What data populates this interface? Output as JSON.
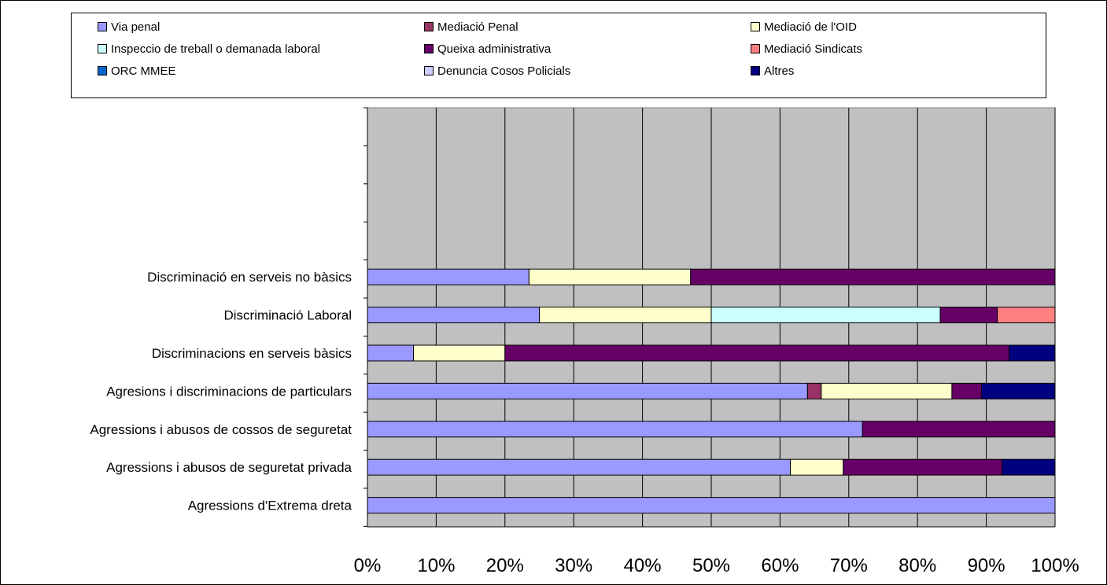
{
  "chart_data": {
    "type": "bar",
    "orientation": "horizontal",
    "stacked": "percent",
    "title": "",
    "xlabel": "",
    "ylabel": "",
    "xlim": [
      0,
      100
    ],
    "x_ticks": [
      "0%",
      "10%",
      "20%",
      "30%",
      "40%",
      "50%",
      "60%",
      "70%",
      "80%",
      "90%",
      "100%"
    ],
    "grid": true,
    "legend_position": "top",
    "categories": [
      "Discriminació en serveis no bàsics",
      "Discriminació Laboral",
      "Discriminacions en serveis bàsics",
      "Agresions i discriminacions de particulars",
      "Agressions i abusos de cossos de seguretat",
      "Agressions i abusos de seguretat privada",
      "Agressions d'Extrema dreta"
    ],
    "series": [
      {
        "name": "Via penal",
        "color": "#9999ff",
        "values": [
          23.5,
          25,
          6.7,
          64,
          72,
          61.5,
          100
        ]
      },
      {
        "name": "Mediació Penal",
        "color": "#993366",
        "values": [
          0,
          0,
          0,
          2,
          0,
          0,
          0
        ]
      },
      {
        "name": "Mediació de l'OID",
        "color": "#ffffcc",
        "values": [
          23.5,
          25,
          13.3,
          19,
          0,
          7.7,
          0
        ]
      },
      {
        "name": "Inspeccio de treball o demanada laboral",
        "color": "#ccffff",
        "values": [
          0,
          33.3,
          0,
          0,
          0,
          0,
          0
        ]
      },
      {
        "name": "Queixa administrativa",
        "color": "#660066",
        "values": [
          53,
          8.3,
          73.3,
          4.3,
          28,
          23.1,
          0
        ]
      },
      {
        "name": "Mediació Sindicats",
        "color": "#ff8080",
        "values": [
          0,
          8.4,
          0,
          0,
          0,
          0,
          0
        ]
      },
      {
        "name": "ORC MMEE",
        "color": "#0066cc",
        "values": [
          0,
          0,
          0,
          0,
          0,
          0,
          0
        ]
      },
      {
        "name": "Denuncia Cosos Policials",
        "color": "#ccccff",
        "values": [
          0,
          0,
          0,
          0,
          0,
          0,
          0
        ]
      },
      {
        "name": "Altres",
        "color": "#000080",
        "values": [
          0,
          0,
          6.7,
          10.7,
          0,
          7.7,
          0
        ]
      }
    ],
    "plot_background": "#c0c0c0"
  }
}
